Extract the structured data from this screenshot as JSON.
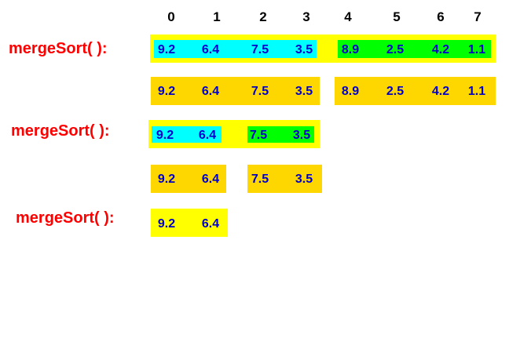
{
  "indices": [
    "0",
    "1",
    "2",
    "3",
    "4",
    "5",
    "6",
    "7"
  ],
  "colors": {
    "outer_box": "#ffff00",
    "inner_box": "#ffd700",
    "left_highlight": "#00ffff",
    "right_highlight": "#00ff00",
    "label": "#ff0000",
    "value": "#0000cc"
  },
  "calls": [
    {
      "label": "mergeSort( ):"
    },
    {
      "label": "mergeSort( ):"
    },
    {
      "label": "mergeSort( ):"
    }
  ],
  "rows": [
    {
      "segment": "call-1",
      "values": [
        "9.2",
        "6.4",
        "7.5",
        "3.5",
        "8.9",
        "2.5",
        "4.2",
        "1.1"
      ]
    },
    {
      "segment": "split-1-left",
      "values": [
        "9.2",
        "6.4",
        "7.5",
        "3.5"
      ]
    },
    {
      "segment": "split-1-right",
      "values": [
        "8.9",
        "2.5",
        "4.2",
        "1.1"
      ]
    },
    {
      "segment": "call-2",
      "values": [
        "9.2",
        "6.4",
        "7.5",
        "3.5"
      ]
    },
    {
      "segment": "split-2-left",
      "values": [
        "9.2",
        "6.4"
      ]
    },
    {
      "segment": "split-2-right",
      "values": [
        "7.5",
        "3.5"
      ]
    },
    {
      "segment": "call-3",
      "values": [
        "9.2",
        "6.4"
      ]
    }
  ]
}
